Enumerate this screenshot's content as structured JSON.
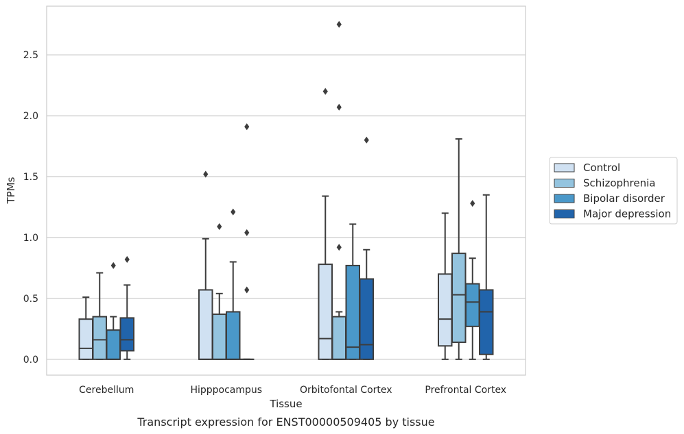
{
  "chart_data": {
    "type": "box",
    "caption": "Transcript expression for ENST00000509405 by tissue",
    "xlabel": "Tissue",
    "ylabel": "TPMs",
    "ylim": [
      -0.13,
      2.9
    ],
    "yticks": [
      0.0,
      0.5,
      1.0,
      1.5,
      2.0,
      2.5
    ],
    "ytick_labels": [
      "0.0",
      "0.5",
      "1.0",
      "1.5",
      "2.0",
      "2.5"
    ],
    "grid": "horizontal",
    "legend_position": "right",
    "categories": [
      "Cerebellum",
      "Hipppocampus",
      "Orbitofontal Cortex",
      "Prefrontal Cortex"
    ],
    "series": [
      {
        "name": "Control",
        "color": "#d0e1f2",
        "boxes": [
          {
            "whisker_low": 0.0,
            "q1": 0.0,
            "median": 0.09,
            "q3": 0.33,
            "whisker_high": 0.51,
            "outliers": []
          },
          {
            "whisker_low": 0.0,
            "q1": 0.0,
            "median": 0.0,
            "q3": 0.57,
            "whisker_high": 0.99,
            "outliers": [
              1.52
            ]
          },
          {
            "whisker_low": 0.0,
            "q1": 0.0,
            "median": 0.17,
            "q3": 0.78,
            "whisker_high": 1.34,
            "outliers": [
              2.2
            ]
          },
          {
            "whisker_low": 0.0,
            "q1": 0.11,
            "median": 0.33,
            "q3": 0.7,
            "whisker_high": 1.2,
            "outliers": []
          }
        ]
      },
      {
        "name": "Schizophrenia",
        "color": "#94c4df",
        "boxes": [
          {
            "whisker_low": 0.0,
            "q1": 0.0,
            "median": 0.16,
            "q3": 0.35,
            "whisker_high": 0.71,
            "outliers": []
          },
          {
            "whisker_low": 0.0,
            "q1": 0.0,
            "median": 0.0,
            "q3": 0.37,
            "whisker_high": 0.54,
            "outliers": [
              1.09
            ]
          },
          {
            "whisker_low": 0.0,
            "q1": 0.0,
            "median": 0.0,
            "q3": 0.35,
            "whisker_high": 0.39,
            "outliers": [
              0.92,
              2.07,
              2.75
            ]
          },
          {
            "whisker_low": 0.0,
            "q1": 0.14,
            "median": 0.53,
            "q3": 0.87,
            "whisker_high": 1.81,
            "outliers": []
          }
        ]
      },
      {
        "name": "Bipolar disorder",
        "color": "#4a98c9",
        "boxes": [
          {
            "whisker_low": 0.0,
            "q1": 0.0,
            "median": 0.0,
            "q3": 0.24,
            "whisker_high": 0.35,
            "outliers": [
              0.77
            ]
          },
          {
            "whisker_low": 0.0,
            "q1": 0.0,
            "median": 0.0,
            "q3": 0.39,
            "whisker_high": 0.8,
            "outliers": [
              1.21
            ]
          },
          {
            "whisker_low": 0.0,
            "q1": 0.0,
            "median": 0.1,
            "q3": 0.77,
            "whisker_high": 1.11,
            "outliers": []
          },
          {
            "whisker_low": 0.0,
            "q1": 0.27,
            "median": 0.47,
            "q3": 0.62,
            "whisker_high": 0.83,
            "outliers": [
              1.28
            ]
          }
        ]
      },
      {
        "name": "Major depression",
        "color": "#2164ab",
        "boxes": [
          {
            "whisker_low": 0.0,
            "q1": 0.07,
            "median": 0.16,
            "q3": 0.34,
            "whisker_high": 0.61,
            "outliers": [
              0.82
            ]
          },
          {
            "whisker_low": 0.0,
            "q1": 0.0,
            "median": 0.0,
            "q3": 0.0,
            "whisker_high": 0.0,
            "outliers": [
              0.57,
              1.04,
              1.91
            ]
          },
          {
            "whisker_low": 0.0,
            "q1": 0.0,
            "median": 0.12,
            "q3": 0.66,
            "whisker_high": 0.9,
            "outliers": [
              1.8
            ]
          },
          {
            "whisker_low": 0.0,
            "q1": 0.04,
            "median": 0.39,
            "q3": 0.57,
            "whisker_high": 1.35,
            "outliers": []
          }
        ]
      }
    ]
  }
}
